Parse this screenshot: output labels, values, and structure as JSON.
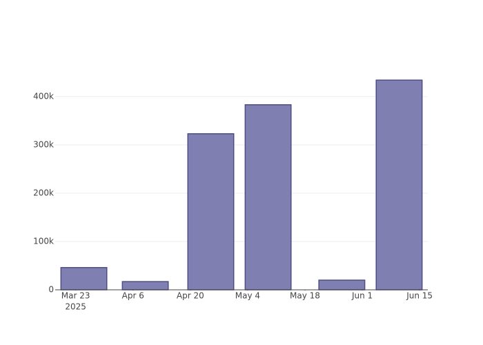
{
  "chart_data": {
    "type": "bar",
    "x": [
      "2025-03-25",
      "2025-04-09",
      "2025-04-25",
      "2025-05-09",
      "2025-05-27",
      "2025-06-10"
    ],
    "values": [
      46000,
      17000,
      323000,
      383000,
      20000,
      434000
    ],
    "color": "#7f7fb1",
    "line_color": "#4e4e85",
    "xlim": [
      "2025-03-18",
      "2025-06-17"
    ],
    "xticks": [
      {
        "value": "2025-03-23",
        "label": "Mar 23"
      },
      {
        "value": "2025-04-06",
        "label": "Apr 6"
      },
      {
        "value": "2025-04-20",
        "label": "Apr 20"
      },
      {
        "value": "2025-05-04",
        "label": "May 4"
      },
      {
        "value": "2025-05-18",
        "label": "May 18"
      },
      {
        "value": "2025-06-01",
        "label": "Jun 1"
      },
      {
        "value": "2025-06-15",
        "label": "Jun 15"
      }
    ],
    "x_axis_year": "2025",
    "ylim": [
      0,
      457000
    ],
    "yticks": [
      0,
      {
        "value": 100000,
        "label": "100k"
      },
      {
        "value": 200000,
        "label": "200k"
      },
      {
        "value": 300000,
        "label": "300k"
      },
      {
        "value": 400000,
        "label": "400k"
      }
    ],
    "grid": true
  }
}
